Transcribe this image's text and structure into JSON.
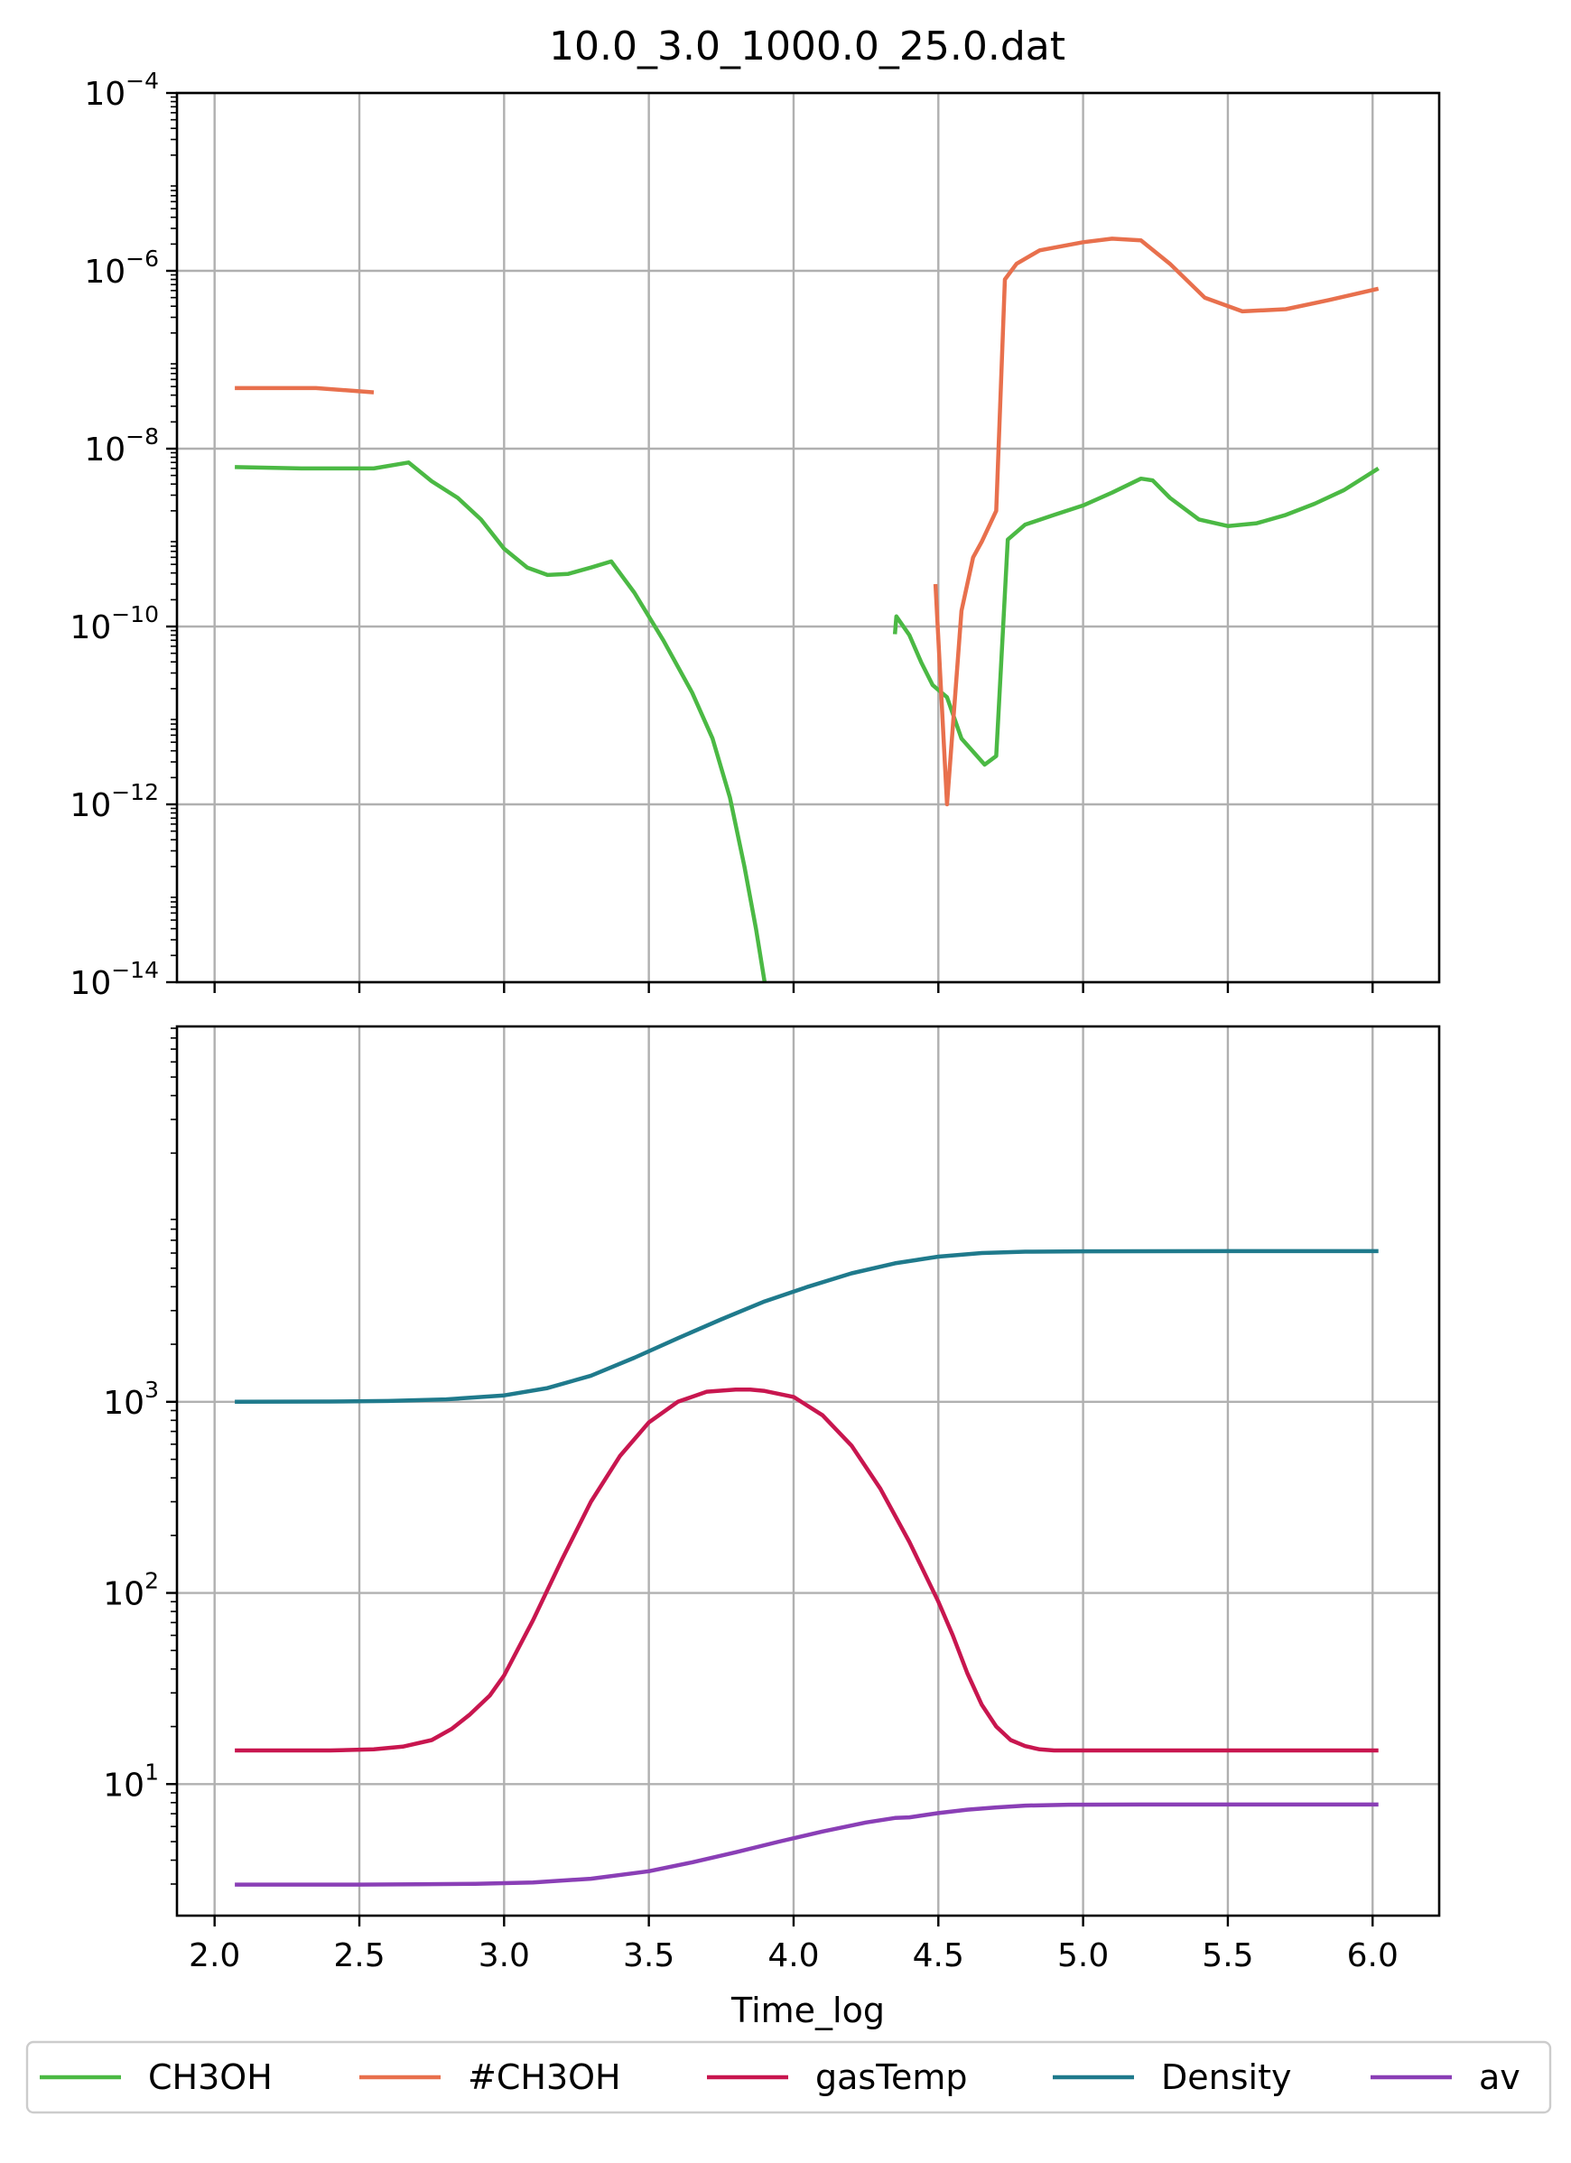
{
  "chart_data": [
    {
      "panel": "top",
      "type": "line",
      "title": "10.0_3.0_1000.0_25.0.dat",
      "xlabel": "",
      "ylabel": "",
      "yscale": "log",
      "xlim": [
        1.87,
        6.23
      ],
      "ylim": [
        1e-14,
        0.0001
      ],
      "xticks": [
        "2.0",
        "2.5",
        "3.0",
        "3.5",
        "4.0",
        "4.5",
        "5.0",
        "5.5",
        "6.0"
      ],
      "yticks": [
        {
          "value": 1e-14,
          "base": "10",
          "exp": "−14"
        },
        {
          "value": 1e-12,
          "base": "10",
          "exp": "−12"
        },
        {
          "value": 1e-10,
          "base": "10",
          "exp": "−10"
        },
        {
          "value": 1e-08,
          "base": "10",
          "exp": "−8"
        },
        {
          "value": 1e-06,
          "base": "10",
          "exp": "−6"
        },
        {
          "value": 0.0001,
          "base": "10",
          "exp": "−4"
        }
      ],
      "grid": true,
      "series": [
        {
          "name": "CH3OH",
          "color": "#4bb944",
          "segments": [
            [
              [
                2.07,
                6.2e-09
              ],
              [
                2.3,
                6e-09
              ],
              [
                2.55,
                6e-09
              ],
              [
                2.67,
                7e-09
              ],
              [
                2.75,
                4.3e-09
              ],
              [
                2.84,
                2.8e-09
              ],
              [
                2.92,
                1.6e-09
              ],
              [
                3.0,
                7.5e-10
              ],
              [
                3.08,
                4.6e-10
              ],
              [
                3.15,
                3.8e-10
              ],
              [
                3.22,
                3.9e-10
              ],
              [
                3.3,
                4.6e-10
              ],
              [
                3.37,
                5.4e-10
              ],
              [
                3.45,
                2.4e-10
              ],
              [
                3.55,
                7e-11
              ],
              [
                3.65,
                1.8e-11
              ],
              [
                3.72,
                5.5e-12
              ],
              [
                3.78,
                1.2e-12
              ],
              [
                3.83,
                2e-13
              ],
              [
                3.87,
                4e-14
              ],
              [
                3.9,
                1e-14
              ]
            ],
            [
              [
                4.35,
                8.2e-11
              ],
              [
                4.355,
                1.3e-10
              ],
              [
                4.4,
                8e-11
              ],
              [
                4.44,
                4e-11
              ],
              [
                4.48,
                2.2e-11
              ],
              [
                4.53,
                1.6e-11
              ],
              [
                4.58,
                5.5e-12
              ],
              [
                4.66,
                2.8e-12
              ],
              [
                4.7,
                3.5e-12
              ],
              [
                4.74,
                9.5e-10
              ],
              [
                4.8,
                1.4e-09
              ],
              [
                4.9,
                1.8e-09
              ],
              [
                5.0,
                2.3e-09
              ],
              [
                5.1,
                3.2e-09
              ],
              [
                5.2,
                4.6e-09
              ],
              [
                5.24,
                4.4e-09
              ],
              [
                5.3,
                2.8e-09
              ],
              [
                5.4,
                1.6e-09
              ],
              [
                5.5,
                1.35e-09
              ],
              [
                5.6,
                1.45e-09
              ],
              [
                5.7,
                1.8e-09
              ],
              [
                5.8,
                2.4e-09
              ],
              [
                5.9,
                3.4e-09
              ],
              [
                6.02,
                6e-09
              ]
            ]
          ]
        },
        {
          "name": "#CH3OH",
          "color": "#e8704d",
          "segments": [
            [
              [
                2.07,
                4.8e-08
              ],
              [
                2.35,
                4.8e-08
              ],
              [
                2.55,
                4.3e-08
              ]
            ],
            [
              [
                4.49,
                3e-10
              ],
              [
                4.53,
                1e-12
              ],
              [
                4.58,
                1.5e-10
              ],
              [
                4.62,
                6e-10
              ],
              [
                4.65,
                9e-10
              ],
              [
                4.7,
                2e-09
              ],
              [
                4.73,
                8e-07
              ],
              [
                4.77,
                1.2e-06
              ],
              [
                4.85,
                1.7e-06
              ],
              [
                5.0,
                2.1e-06
              ],
              [
                5.1,
                2.3e-06
              ],
              [
                5.2,
                2.2e-06
              ],
              [
                5.3,
                1.2e-06
              ],
              [
                5.42,
                5e-07
              ],
              [
                5.55,
                3.5e-07
              ],
              [
                5.7,
                3.7e-07
              ],
              [
                5.85,
                4.7e-07
              ],
              [
                6.02,
                6.3e-07
              ]
            ]
          ]
        }
      ]
    },
    {
      "panel": "bottom",
      "type": "line",
      "title": "",
      "xlabel": "Time_log",
      "ylabel": "",
      "yscale": "log",
      "xlim": [
        1.87,
        6.23
      ],
      "ylim": [
        2.05,
        92000
      ],
      "xticks": [
        "2.0",
        "2.5",
        "3.0",
        "3.5",
        "4.0",
        "4.5",
        "5.0",
        "5.5",
        "6.0"
      ],
      "yticks": [
        {
          "value": 10,
          "base": "10",
          "exp": "1"
        },
        {
          "value": 100,
          "base": "10",
          "exp": "2"
        },
        {
          "value": 1000,
          "base": "10",
          "exp": "3"
        }
      ],
      "grid": true,
      "series": [
        {
          "name": "gasTemp",
          "color": "#c8164f",
          "segments": [
            [
              [
                2.07,
                15
              ],
              [
                2.4,
                15
              ],
              [
                2.55,
                15.2
              ],
              [
                2.65,
                15.7
              ],
              [
                2.75,
                17
              ],
              [
                2.82,
                19.5
              ],
              [
                2.88,
                23
              ],
              [
                2.95,
                29
              ],
              [
                3.0,
                37
              ],
              [
                3.1,
                72
              ],
              [
                3.2,
                150
              ],
              [
                3.3,
                300
              ],
              [
                3.4,
                520
              ],
              [
                3.5,
                780
              ],
              [
                3.6,
                1000
              ],
              [
                3.7,
                1130
              ],
              [
                3.8,
                1160
              ],
              [
                3.85,
                1160
              ],
              [
                3.9,
                1140
              ],
              [
                4.0,
                1060
              ],
              [
                4.1,
                850
              ],
              [
                4.2,
                590
              ],
              [
                4.3,
                350
              ],
              [
                4.4,
                185
              ],
              [
                4.5,
                90
              ],
              [
                4.55,
                60
              ],
              [
                4.6,
                38
              ],
              [
                4.65,
                26
              ],
              [
                4.7,
                20
              ],
              [
                4.75,
                17
              ],
              [
                4.8,
                15.8
              ],
              [
                4.85,
                15.2
              ],
              [
                4.9,
                15
              ],
              [
                5.2,
                15
              ],
              [
                6.02,
                15
              ]
            ]
          ]
        },
        {
          "name": "Density",
          "color": "#1f7a8c",
          "segments": [
            [
              [
                2.07,
                1000
              ],
              [
                2.4,
                1003
              ],
              [
                2.6,
                1010
              ],
              [
                2.8,
                1030
              ],
              [
                3.0,
                1080
              ],
              [
                3.15,
                1180
              ],
              [
                3.3,
                1370
              ],
              [
                3.45,
                1700
              ],
              [
                3.6,
                2150
              ],
              [
                3.75,
                2700
              ],
              [
                3.9,
                3350
              ],
              [
                4.05,
                4000
              ],
              [
                4.2,
                4700
              ],
              [
                4.35,
                5300
              ],
              [
                4.5,
                5750
              ],
              [
                4.65,
                6000
              ],
              [
                4.8,
                6100
              ],
              [
                5.0,
                6130
              ],
              [
                5.5,
                6140
              ],
              [
                6.02,
                6140
              ]
            ]
          ]
        },
        {
          "name": "av",
          "color": "#8a3fb6",
          "segments": [
            [
              [
                2.07,
                2.98
              ],
              [
                2.5,
                2.98
              ],
              [
                2.7,
                2.99
              ],
              [
                2.9,
                3.01
              ],
              [
                3.1,
                3.06
              ],
              [
                3.3,
                3.2
              ],
              [
                3.5,
                3.5
              ],
              [
                3.65,
                3.9
              ],
              [
                3.8,
                4.4
              ],
              [
                3.95,
                5.0
              ],
              [
                4.1,
                5.65
              ],
              [
                4.25,
                6.3
              ],
              [
                4.35,
                6.65
              ],
              [
                4.4,
                6.7
              ],
              [
                4.5,
                7.05
              ],
              [
                4.6,
                7.35
              ],
              [
                4.7,
                7.55
              ],
              [
                4.8,
                7.72
              ],
              [
                4.95,
                7.8
              ],
              [
                5.2,
                7.82
              ],
              [
                6.02,
                7.82
              ]
            ]
          ]
        }
      ]
    }
  ],
  "legend": {
    "placement": "bottom",
    "entries": [
      {
        "label": "CH3OH",
        "color": "#4bb944"
      },
      {
        "label": "#CH3OH",
        "color": "#e8704d"
      },
      {
        "label": "gasTemp",
        "color": "#c8164f"
      },
      {
        "label": "Density",
        "color": "#1f7a8c"
      },
      {
        "label": "av",
        "color": "#8a3fb6"
      }
    ]
  }
}
